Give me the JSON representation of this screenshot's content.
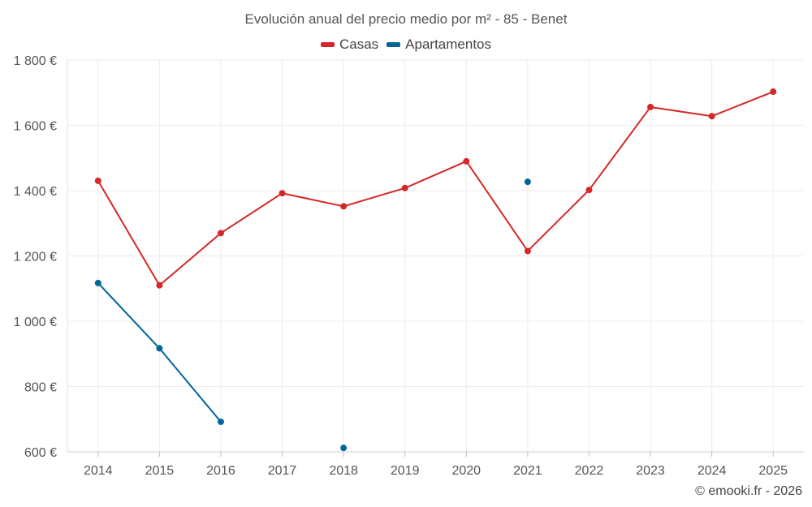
{
  "title": "Evolución anual del precio medio por m² - 85 - Benet",
  "credit": "© emooki.fr - 2026",
  "legend": [
    {
      "name": "Casas",
      "color": "#d62728"
    },
    {
      "name": "Apartamentos",
      "color": "#006699"
    }
  ],
  "chart_data": {
    "type": "line",
    "title": "Evolución anual del precio medio por m² - 85 - Benet",
    "xlabel": "",
    "ylabel": "",
    "categories": [
      "2014",
      "2015",
      "2016",
      "2017",
      "2018",
      "2019",
      "2020",
      "2021",
      "2022",
      "2023",
      "2024",
      "2025"
    ],
    "ylim": [
      600,
      1800
    ],
    "yticks": [
      600,
      800,
      1000,
      1200,
      1400,
      1600,
      1800
    ],
    "ytick_labels": [
      "600 €",
      "800 €",
      "1 000 €",
      "1 200 €",
      "1 400 €",
      "1 600 €",
      "1 800 €"
    ],
    "grid": true,
    "legend_position": "top-center",
    "series": [
      {
        "name": "Casas",
        "color": "#d62728",
        "values": [
          1430,
          1110,
          1270,
          1392,
          1352,
          1408,
          1490,
          1215,
          1402,
          1656,
          1628,
          1703
        ]
      },
      {
        "name": "Apartamentos",
        "color": "#006699",
        "values": [
          1117,
          917,
          692,
          null,
          612,
          null,
          null,
          1427,
          null,
          null,
          null,
          null
        ]
      }
    ]
  }
}
